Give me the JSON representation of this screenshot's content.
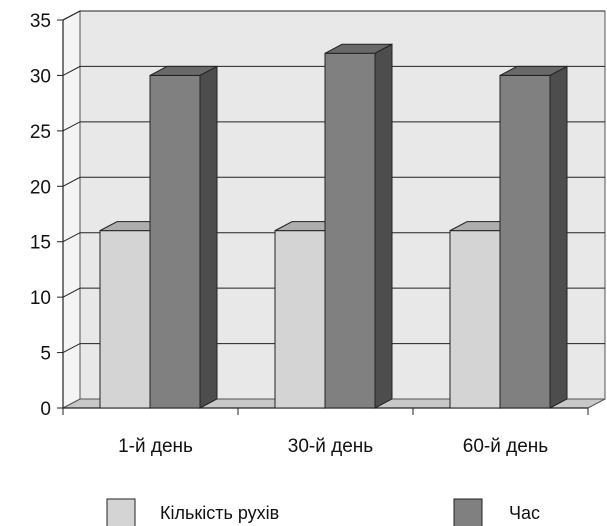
{
  "chart_data": {
    "type": "bar",
    "style": "3d-clustered-column",
    "categories": [
      "1-й день",
      "30-й день",
      "60-й день"
    ],
    "series": [
      {
        "name": "Кількість рухів",
        "values": [
          16,
          16,
          16
        ],
        "color": "#d4d4d4"
      },
      {
        "name": "Час",
        "values": [
          30,
          32,
          30
        ],
        "color": "#808080"
      }
    ],
    "ylim": [
      0,
      35
    ],
    "yticks": [
      "0",
      "5",
      "10",
      "15",
      "20",
      "25",
      "30",
      "35"
    ],
    "title": "",
    "xlabel": "",
    "ylabel": "",
    "grid": true,
    "legend": "bottom",
    "wall_color": "#e8e8e8"
  }
}
